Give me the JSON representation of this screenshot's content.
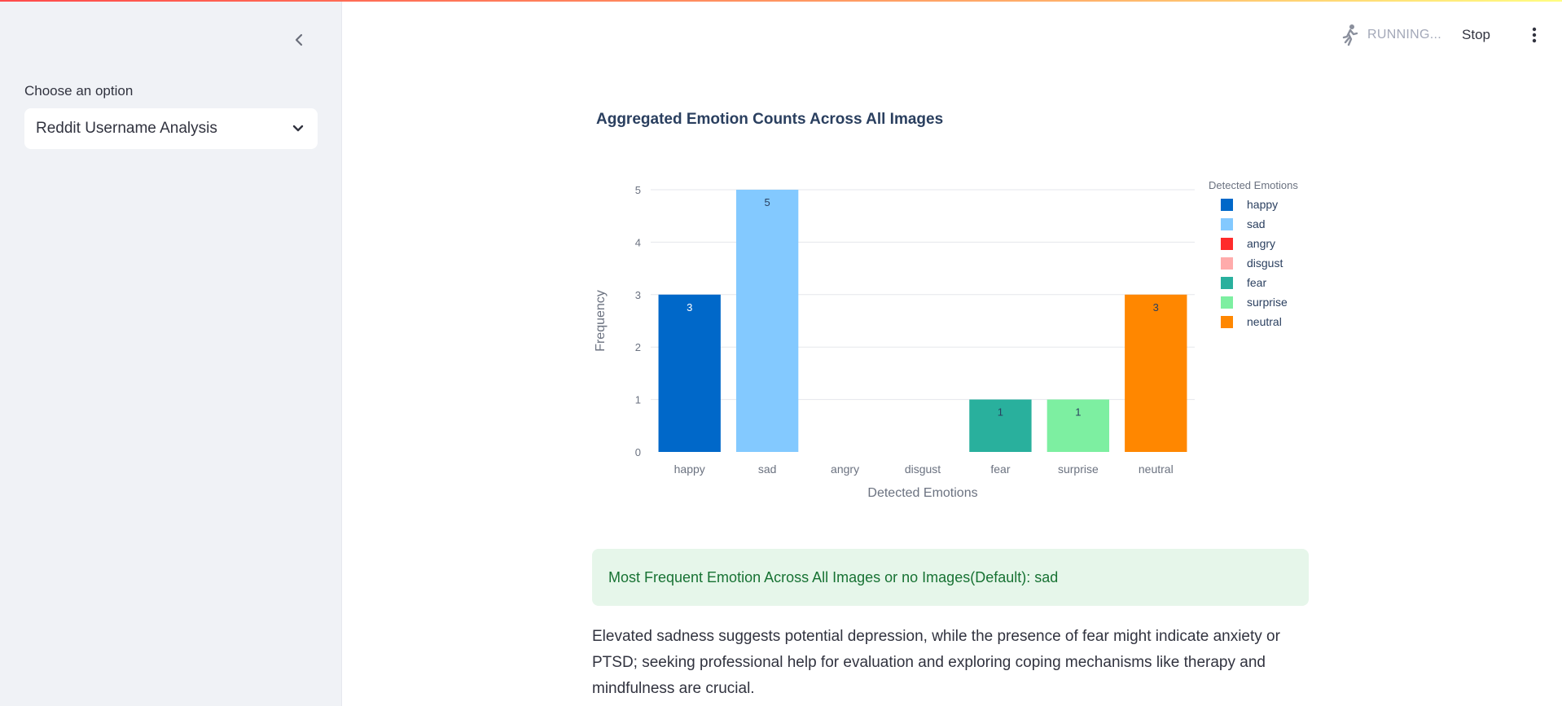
{
  "sidebar": {
    "select_label": "Choose an option",
    "select_value": "Reddit Username Analysis"
  },
  "header": {
    "status_text": "RUNNING...",
    "stop_label": "Stop"
  },
  "chart_title": "Aggregated Emotion Counts Across All Images",
  "chart_data": {
    "type": "bar",
    "title": "Aggregated Emotion Counts Across All Images",
    "xlabel": "Detected Emotions",
    "ylabel": "Frequency",
    "ylim": [
      0,
      5
    ],
    "yticks": [
      0,
      1,
      2,
      3,
      4,
      5
    ],
    "grid": true,
    "legend_title": "Detected Emotions",
    "legend_position": "top-right",
    "categories": [
      "happy",
      "sad",
      "angry",
      "disgust",
      "fear",
      "surprise",
      "neutral"
    ],
    "values": [
      3,
      5,
      0,
      0,
      1,
      1,
      3
    ],
    "colors": [
      "#0068c9",
      "#83c9ff",
      "#ff2b2b",
      "#ffabab",
      "#29b09d",
      "#7defa1",
      "#ff8700"
    ]
  },
  "result_message": "Most Frequent Emotion Across All Images or no Images(Default): sad",
  "analysis_text": "Elevated sadness suggests potential depression, while the presence of fear might indicate anxiety or PTSD; seeking professional help for evaluation and exploring coping mechanisms like therapy and mindfulness are crucial."
}
